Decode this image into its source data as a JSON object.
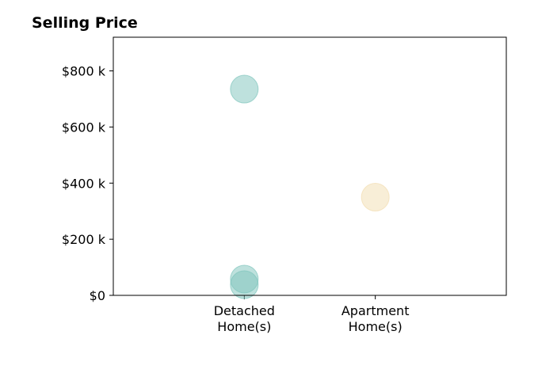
{
  "chart_data": {
    "type": "scatter",
    "title": "Selling Price",
    "xlabel": "",
    "ylabel": "",
    "categories": [
      "Detached\nHome(s)",
      "Apartment\nHome(s)"
    ],
    "xlim": [
      -1,
      2
    ],
    "ylim": [
      0,
      920000
    ],
    "y_ticks": [
      0,
      200000,
      400000,
      600000,
      800000
    ],
    "y_tick_labels": [
      "$0",
      "$200 k",
      "$400 k",
      "$600 k",
      "$800 k"
    ],
    "grid": false,
    "series": [
      {
        "color": "#7ec4bc",
        "points": [
          {
            "category": 0,
            "value": 735000
          },
          {
            "category": 0,
            "value": 58000
          },
          {
            "category": 0,
            "value": 38000
          }
        ]
      },
      {
        "color": "#f2ddb0",
        "points": [
          {
            "category": 1,
            "value": 350000
          }
        ]
      }
    ]
  }
}
